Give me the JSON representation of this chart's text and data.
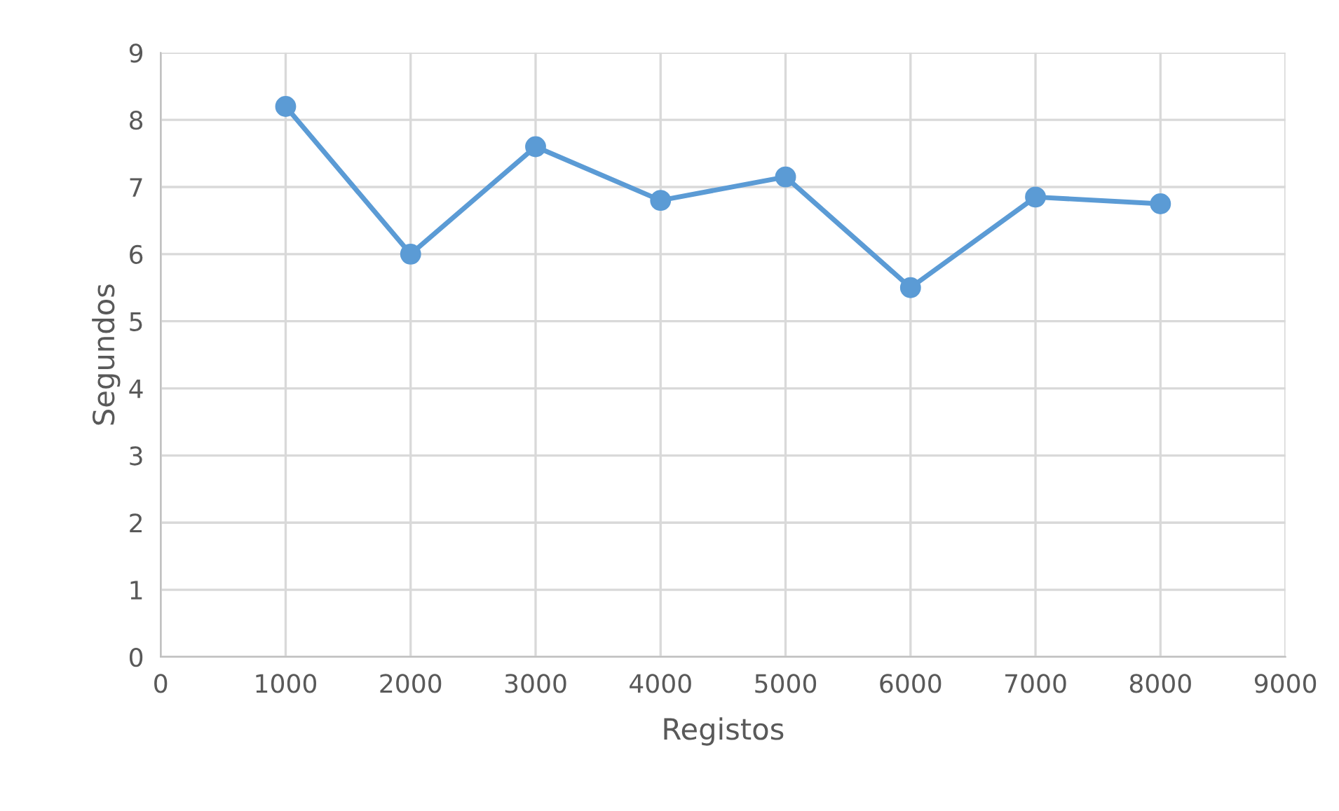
{
  "chart_data": {
    "type": "line",
    "xlabel": "Registos",
    "ylabel": "Segundos",
    "x": [
      1000,
      2000,
      3000,
      4000,
      5000,
      6000,
      7000,
      8000
    ],
    "series": [
      {
        "color": "#5b9bd5",
        "values": [
          8.2,
          6.0,
          7.6,
          6.8,
          7.15,
          5.5,
          6.85,
          6.75
        ]
      }
    ],
    "xlim": [
      0,
      9000
    ],
    "xticks": [
      0,
      1000,
      2000,
      3000,
      4000,
      5000,
      6000,
      7000,
      8000,
      9000
    ],
    "ylim": [
      0,
      9
    ],
    "yticks": [
      0,
      1,
      2,
      3,
      4,
      5,
      6,
      7,
      8,
      9
    ],
    "grid": true,
    "marker": "circle",
    "line_style": "solid"
  }
}
